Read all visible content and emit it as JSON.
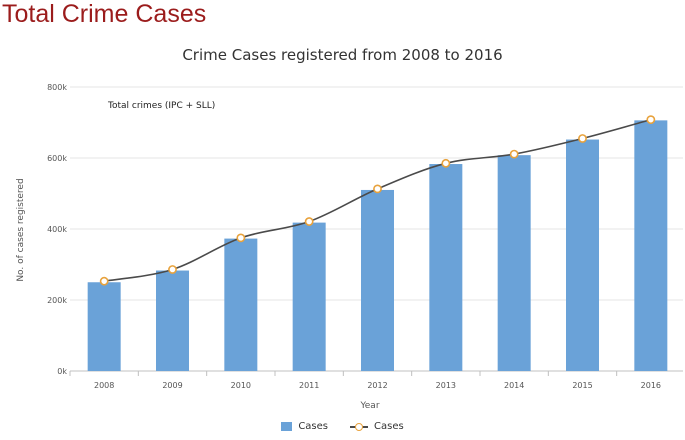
{
  "page": {
    "heading": "Total Crime Cases"
  },
  "colors": {
    "heading": "#9b1c1c",
    "bar": "#6aa2d8",
    "line": "#4a4a4a",
    "marker": "#e8a23c"
  },
  "chart_data": {
    "type": "bar",
    "title": "Crime Cases registered from 2008 to 2016",
    "annotation": "Total crimes (IPC + SLL)",
    "xlabel": "Year",
    "ylabel": "No. of cases registered",
    "categories": [
      "2008",
      "2009",
      "2010",
      "2011",
      "2012",
      "2013",
      "2014",
      "2015",
      "2016"
    ],
    "yticks": [
      "0k",
      "200k",
      "400k",
      "600k",
      "800k"
    ],
    "ylim": [
      0,
      800000
    ],
    "grid": true,
    "legend_position": "bottom",
    "series": [
      {
        "name": "Cases",
        "type": "bar",
        "values": [
          250000,
          283000,
          373000,
          418000,
          510000,
          583000,
          608000,
          652000,
          706000
        ]
      },
      {
        "name": "Cases",
        "type": "line",
        "values": [
          253000,
          286000,
          375000,
          421000,
          513000,
          585000,
          611000,
          655000,
          708000
        ]
      }
    ]
  }
}
